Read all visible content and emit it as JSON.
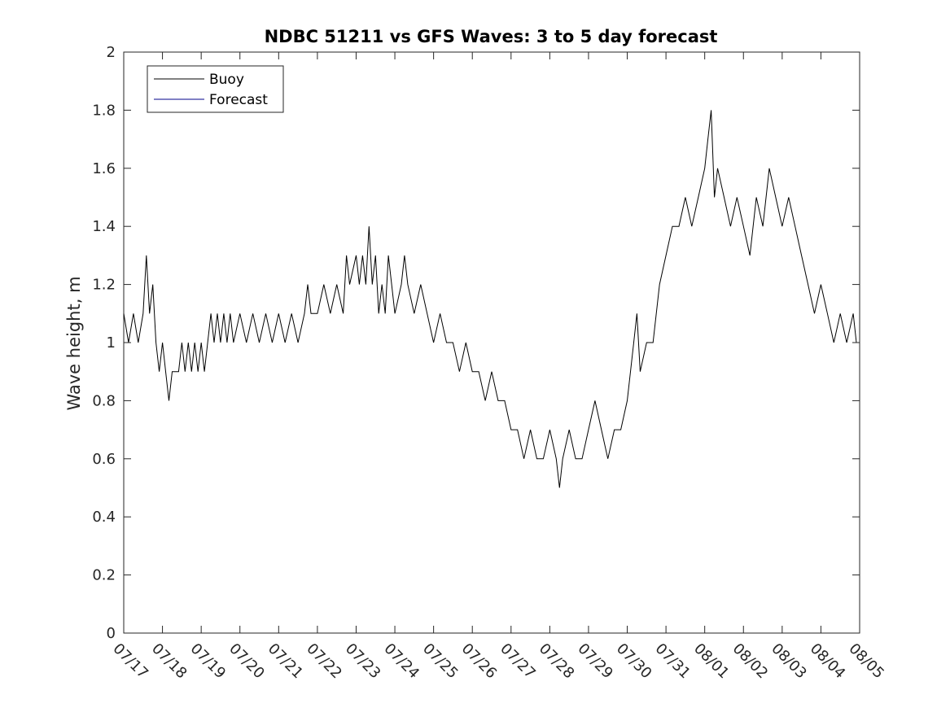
{
  "chart_data": {
    "type": "line",
    "title": "NDBC 51211 vs GFS Waves: 3 to 5 day forecast",
    "ylabel": "Wave height, m",
    "xlabel": "",
    "x_tick_labels": [
      "07/17",
      "07/18",
      "07/19",
      "07/20",
      "07/21",
      "07/22",
      "07/23",
      "07/24",
      "07/25",
      "07/26",
      "07/27",
      "07/28",
      "07/29",
      "07/30",
      "07/31",
      "08/01",
      "08/02",
      "08/03",
      "08/04",
      "08/05"
    ],
    "y_tick_labels": [
      "0",
      "0.2",
      "0.4",
      "0.6",
      "0.8",
      "1",
      "1.2",
      "1.4",
      "1.6",
      "1.8",
      "2"
    ],
    "xlim": [
      "07/17 00:00",
      "08/05 00:00"
    ],
    "ylim": [
      0,
      2
    ],
    "grid": false,
    "legend_position": "top-left",
    "series": [
      {
        "name": "Buoy",
        "color": "#000000",
        "points": [
          [
            "07/17 00:00",
            1.1
          ],
          [
            "07/17 03:00",
            1.0
          ],
          [
            "07/17 06:00",
            1.1
          ],
          [
            "07/17 09:00",
            1.0
          ],
          [
            "07/17 12:00",
            1.1
          ],
          [
            "07/17 14:00",
            1.3
          ],
          [
            "07/17 16:00",
            1.1
          ],
          [
            "07/17 18:00",
            1.2
          ],
          [
            "07/17 20:00",
            1.0
          ],
          [
            "07/17 22:00",
            0.9
          ],
          [
            "07/18 00:00",
            1.0
          ],
          [
            "07/18 02:00",
            0.9
          ],
          [
            "07/18 04:00",
            0.8
          ],
          [
            "07/18 06:00",
            0.9
          ],
          [
            "07/18 10:00",
            0.9
          ],
          [
            "07/18 12:00",
            1.0
          ],
          [
            "07/18 14:00",
            0.9
          ],
          [
            "07/18 16:00",
            1.0
          ],
          [
            "07/18 18:00",
            0.9
          ],
          [
            "07/18 20:00",
            1.0
          ],
          [
            "07/18 22:00",
            0.9
          ],
          [
            "07/19 00:00",
            1.0
          ],
          [
            "07/19 02:00",
            0.9
          ],
          [
            "07/19 04:00",
            1.0
          ],
          [
            "07/19 06:00",
            1.1
          ],
          [
            "07/19 08:00",
            1.0
          ],
          [
            "07/19 10:00",
            1.1
          ],
          [
            "07/19 12:00",
            1.0
          ],
          [
            "07/19 14:00",
            1.1
          ],
          [
            "07/19 16:00",
            1.0
          ],
          [
            "07/19 18:00",
            1.1
          ],
          [
            "07/19 20:00",
            1.0
          ],
          [
            "07/20 00:00",
            1.1
          ],
          [
            "07/20 04:00",
            1.0
          ],
          [
            "07/20 08:00",
            1.1
          ],
          [
            "07/20 12:00",
            1.0
          ],
          [
            "07/20 16:00",
            1.1
          ],
          [
            "07/20 20:00",
            1.0
          ],
          [
            "07/21 00:00",
            1.1
          ],
          [
            "07/21 04:00",
            1.0
          ],
          [
            "07/21 08:00",
            1.1
          ],
          [
            "07/21 12:00",
            1.0
          ],
          [
            "07/21 16:00",
            1.1
          ],
          [
            "07/21 18:00",
            1.2
          ],
          [
            "07/21 20:00",
            1.1
          ],
          [
            "07/22 00:00",
            1.1
          ],
          [
            "07/22 04:00",
            1.2
          ],
          [
            "07/22 08:00",
            1.1
          ],
          [
            "07/22 12:00",
            1.2
          ],
          [
            "07/22 16:00",
            1.1
          ],
          [
            "07/22 18:00",
            1.3
          ],
          [
            "07/22 20:00",
            1.2
          ],
          [
            "07/23 00:00",
            1.3
          ],
          [
            "07/23 02:00",
            1.2
          ],
          [
            "07/23 04:00",
            1.3
          ],
          [
            "07/23 06:00",
            1.2
          ],
          [
            "07/23 08:00",
            1.4
          ],
          [
            "07/23 10:00",
            1.2
          ],
          [
            "07/23 12:00",
            1.3
          ],
          [
            "07/23 14:00",
            1.1
          ],
          [
            "07/23 16:00",
            1.2
          ],
          [
            "07/23 18:00",
            1.1
          ],
          [
            "07/23 20:00",
            1.3
          ],
          [
            "07/23 22:00",
            1.2
          ],
          [
            "07/24 00:00",
            1.1
          ],
          [
            "07/24 04:00",
            1.2
          ],
          [
            "07/24 06:00",
            1.3
          ],
          [
            "07/24 08:00",
            1.2
          ],
          [
            "07/24 12:00",
            1.1
          ],
          [
            "07/24 16:00",
            1.2
          ],
          [
            "07/24 20:00",
            1.1
          ],
          [
            "07/25 00:00",
            1.0
          ],
          [
            "07/25 04:00",
            1.1
          ],
          [
            "07/25 08:00",
            1.0
          ],
          [
            "07/25 12:00",
            1.0
          ],
          [
            "07/25 16:00",
            0.9
          ],
          [
            "07/25 20:00",
            1.0
          ],
          [
            "07/26 00:00",
            0.9
          ],
          [
            "07/26 04:00",
            0.9
          ],
          [
            "07/26 08:00",
            0.8
          ],
          [
            "07/26 12:00",
            0.9
          ],
          [
            "07/26 16:00",
            0.8
          ],
          [
            "07/26 20:00",
            0.8
          ],
          [
            "07/27 00:00",
            0.7
          ],
          [
            "07/27 04:00",
            0.7
          ],
          [
            "07/27 08:00",
            0.6
          ],
          [
            "07/27 12:00",
            0.7
          ],
          [
            "07/27 16:00",
            0.6
          ],
          [
            "07/27 20:00",
            0.6
          ],
          [
            "07/28 00:00",
            0.7
          ],
          [
            "07/28 04:00",
            0.6
          ],
          [
            "07/28 06:00",
            0.5
          ],
          [
            "07/28 08:00",
            0.6
          ],
          [
            "07/28 12:00",
            0.7
          ],
          [
            "07/28 16:00",
            0.6
          ],
          [
            "07/28 20:00",
            0.6
          ],
          [
            "07/29 00:00",
            0.7
          ],
          [
            "07/29 04:00",
            0.8
          ],
          [
            "07/29 08:00",
            0.7
          ],
          [
            "07/29 12:00",
            0.6
          ],
          [
            "07/29 16:00",
            0.7
          ],
          [
            "07/29 20:00",
            0.7
          ],
          [
            "07/30 00:00",
            0.8
          ],
          [
            "07/30 04:00",
            1.0
          ],
          [
            "07/30 06:00",
            1.1
          ],
          [
            "07/30 08:00",
            0.9
          ],
          [
            "07/30 12:00",
            1.0
          ],
          [
            "07/30 16:00",
            1.0
          ],
          [
            "07/30 20:00",
            1.2
          ],
          [
            "07/31 00:00",
            1.3
          ],
          [
            "07/31 04:00",
            1.4
          ],
          [
            "07/31 08:00",
            1.4
          ],
          [
            "07/31 12:00",
            1.5
          ],
          [
            "07/31 16:00",
            1.4
          ],
          [
            "07/31 20:00",
            1.5
          ],
          [
            "08/01 00:00",
            1.6
          ],
          [
            "08/01 02:00",
            1.7
          ],
          [
            "08/01 04:00",
            1.8
          ],
          [
            "08/01 06:00",
            1.5
          ],
          [
            "08/01 08:00",
            1.6
          ],
          [
            "08/01 12:00",
            1.5
          ],
          [
            "08/01 16:00",
            1.4
          ],
          [
            "08/01 20:00",
            1.5
          ],
          [
            "08/02 00:00",
            1.4
          ],
          [
            "08/02 04:00",
            1.3
          ],
          [
            "08/02 08:00",
            1.5
          ],
          [
            "08/02 12:00",
            1.4
          ],
          [
            "08/02 16:00",
            1.6
          ],
          [
            "08/02 20:00",
            1.5
          ],
          [
            "08/03 00:00",
            1.4
          ],
          [
            "08/03 04:00",
            1.5
          ],
          [
            "08/03 08:00",
            1.4
          ],
          [
            "08/03 12:00",
            1.3
          ],
          [
            "08/03 16:00",
            1.2
          ],
          [
            "08/03 20:00",
            1.1
          ],
          [
            "08/04 00:00",
            1.2
          ],
          [
            "08/04 04:00",
            1.1
          ],
          [
            "08/04 08:00",
            1.0
          ],
          [
            "08/04 12:00",
            1.1
          ],
          [
            "08/04 16:00",
            1.0
          ],
          [
            "08/04 20:00",
            1.1
          ],
          [
            "08/04 22:00",
            1.0
          ]
        ]
      },
      {
        "name": "Forecast",
        "color": "#00008b",
        "points": []
      }
    ]
  }
}
